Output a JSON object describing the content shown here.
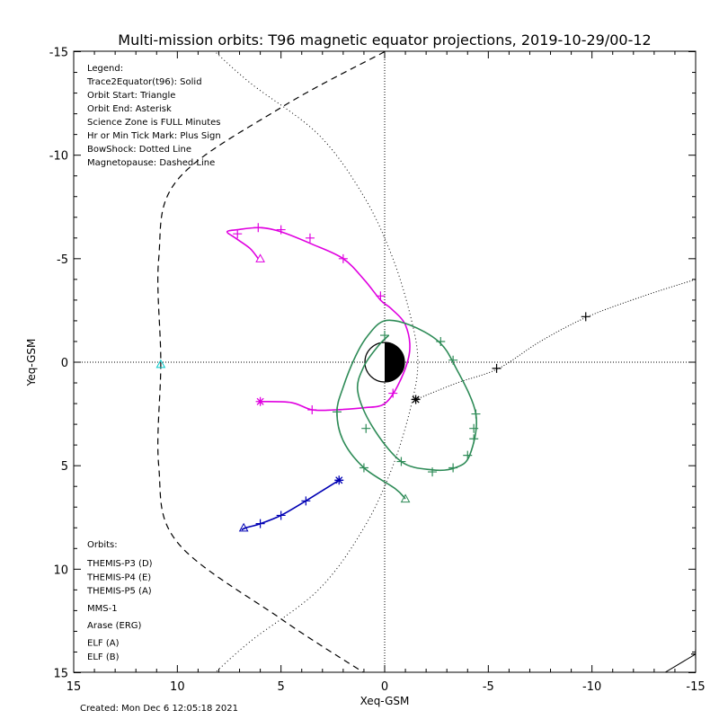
{
  "chart_data": {
    "type": "line",
    "title": "Multi-mission orbits: T96 magnetic equator projections, 2019-10-29/00-12",
    "xlabel": "Xeq-GSM",
    "ylabel": "Yeq-GSM",
    "xlim": [
      15,
      -15
    ],
    "ylim": [
      15,
      -15
    ],
    "x_ticks": [
      "15",
      "10",
      "5",
      "0",
      "-5",
      "-10",
      "-15"
    ],
    "y_ticks": [
      "-15",
      "-10",
      "-5",
      "0",
      "5",
      "10",
      "15"
    ],
    "legend_notes": [
      "Legend:",
      "Trace2Equator(t96): Solid",
      "Orbit Start: Triangle",
      "Orbit End: Asterisk",
      "Science Zone is FULL Minutes",
      "Hr or Min Tick Mark: Plus Sign",
      "BowShock: Dotted Line",
      "Magnetopause: Dashed Line"
    ],
    "orbits_title": "Orbits:",
    "created": "Created: Mon Dec  6 12:05:18 2021",
    "bow_shock": {
      "style": "dotted",
      "points": [
        [
          8.5,
          -15.3
        ],
        [
          6.5,
          -13.5
        ],
        [
          3.2,
          -11
        ],
        [
          1.0,
          -8
        ],
        [
          -0.4,
          -5
        ],
        [
          -1.3,
          -2
        ],
        [
          -1.6,
          0
        ],
        [
          -1.3,
          2
        ],
        [
          -0.4,
          5
        ],
        [
          1.0,
          8
        ],
        [
          3.2,
          11
        ],
        [
          6.5,
          13.5
        ],
        [
          8.5,
          15.3
        ]
      ]
    },
    "magnetopause": {
      "style": "dashed",
      "points": [
        [
          0,
          -15
        ],
        [
          5,
          -12.3
        ],
        [
          10,
          -8.8
        ],
        [
          10.9,
          -5
        ],
        [
          10.8,
          0
        ],
        [
          10.9,
          5
        ],
        [
          10,
          8.7
        ],
        [
          5,
          12.4
        ],
        [
          1,
          15
        ]
      ]
    },
    "series": [
      {
        "name": "THEMIS-P3 (D)",
        "color": "#00c8c8",
        "points": [
          [
            10.8,
            0.1
          ]
        ],
        "start": [
          10.8,
          0.1
        ],
        "end": null,
        "ticks": []
      },
      {
        "name": "THEMIS-P4 (E)",
        "color": "#0000b4",
        "points": [
          [
            2.2,
            5.7
          ],
          [
            3.0,
            6.2
          ],
          [
            3.8,
            6.7
          ],
          [
            5.0,
            7.4
          ],
          [
            6.0,
            7.8
          ],
          [
            6.7,
            8.0
          ],
          [
            6.9,
            8.1
          ]
        ],
        "start": [
          6.8,
          8.0
        ],
        "end": [
          2.2,
          5.7
        ],
        "ticks": [
          [
            3.8,
            6.7
          ],
          [
            5.0,
            7.4
          ],
          [
            6.0,
            7.8
          ]
        ]
      },
      {
        "name": "THEMIS-P5 (A)",
        "color": "#e000e0",
        "points": [
          [
            6.0,
            1.9
          ],
          [
            4.5,
            1.95
          ],
          [
            3.5,
            2.3
          ],
          [
            2.4,
            2.3
          ],
          [
            1.0,
            2.2
          ],
          [
            0.0,
            2.0
          ],
          [
            -0.7,
            1.0
          ],
          [
            -1.2,
            -0.5
          ],
          [
            -1.0,
            -1.8
          ],
          [
            -0.3,
            -2.6
          ],
          [
            0.2,
            -3.0
          ],
          [
            1.0,
            -4.0
          ],
          [
            2.0,
            -5.0
          ],
          [
            3.5,
            -5.7
          ],
          [
            5.0,
            -6.3
          ],
          [
            6.0,
            -6.5
          ],
          [
            7.1,
            -6.4
          ],
          [
            7.6,
            -6.3
          ],
          [
            7.2,
            -6.0
          ],
          [
            6.5,
            -5.5
          ],
          [
            6.1,
            -5.0
          ]
        ],
        "start": [
          6.0,
          -5.0
        ],
        "end": [
          6.0,
          1.9
        ],
        "ticks": [
          [
            3.5,
            2.3
          ],
          [
            -0.4,
            1.5
          ],
          [
            0.2,
            -3.2
          ],
          [
            2.0,
            -5.0
          ],
          [
            3.6,
            -6.0
          ],
          [
            5.0,
            -6.4
          ],
          [
            6.1,
            -6.5
          ],
          [
            7.1,
            -6.2
          ]
        ]
      },
      {
        "name": "MMS-1",
        "color": "#000000",
        "points": [
          [
            -1.5,
            1.8
          ],
          [
            -3.5,
            1.0
          ],
          [
            -5.5,
            0.3
          ],
          [
            -7.5,
            -1.0
          ],
          [
            -9.8,
            -2.2
          ],
          [
            -12.5,
            -3.2
          ],
          [
            -15,
            -4.0
          ]
        ],
        "start": null,
        "end": [
          -1.5,
          1.8
        ],
        "ticks": [
          [
            -5.4,
            0.3
          ],
          [
            -9.7,
            -2.2
          ]
        ]
      },
      {
        "name": "Arase (ERG)",
        "color": "#2e8b57",
        "points": [
          [
            -1.0,
            6.6
          ],
          [
            -0.5,
            6.1
          ],
          [
            1.0,
            5.1
          ],
          [
            2.0,
            3.8
          ],
          [
            2.3,
            2.4
          ],
          [
            2.0,
            1.2
          ],
          [
            1.4,
            -0.3
          ],
          [
            0.8,
            -1.3
          ],
          [
            0.0,
            -2.0
          ],
          [
            -1.2,
            -1.8
          ],
          [
            -2.6,
            -1.0
          ],
          [
            -3.4,
            0.2
          ],
          [
            -4.4,
            2.5
          ],
          [
            -4.1,
            4.5
          ],
          [
            -3.4,
            5.1
          ],
          [
            -2.3,
            5.2
          ],
          [
            -0.8,
            4.8
          ],
          [
            0.6,
            3.1
          ],
          [
            1.3,
            1.4
          ],
          [
            1.0,
            0.2
          ],
          [
            0.3,
            -0.8
          ],
          [
            -0.2,
            -1.3
          ]
        ],
        "start": [
          -1.0,
          6.6
        ],
        "end": null,
        "ticks": [
          [
            1.0,
            5.1
          ],
          [
            2.3,
            2.4
          ],
          [
            -3.3,
            -0.1
          ],
          [
            -2.7,
            -1.0
          ],
          [
            -4.4,
            2.5
          ],
          [
            -4.3,
            3.7
          ],
          [
            -3.3,
            5.1
          ],
          [
            -2.3,
            5.3
          ],
          [
            -0.8,
            4.8
          ],
          [
            -4.0,
            4.5
          ],
          [
            -4.3,
            3.2
          ],
          [
            0.9,
            3.2
          ],
          [
            0.0,
            -1.3
          ]
        ]
      },
      {
        "name": "ELF (A)",
        "color": "#4b86d6",
        "points": [],
        "start": null,
        "end": null,
        "ticks": []
      },
      {
        "name": "ELF (B)",
        "color": "#e01010",
        "points": [],
        "start": null,
        "end": null,
        "ticks": []
      }
    ]
  }
}
